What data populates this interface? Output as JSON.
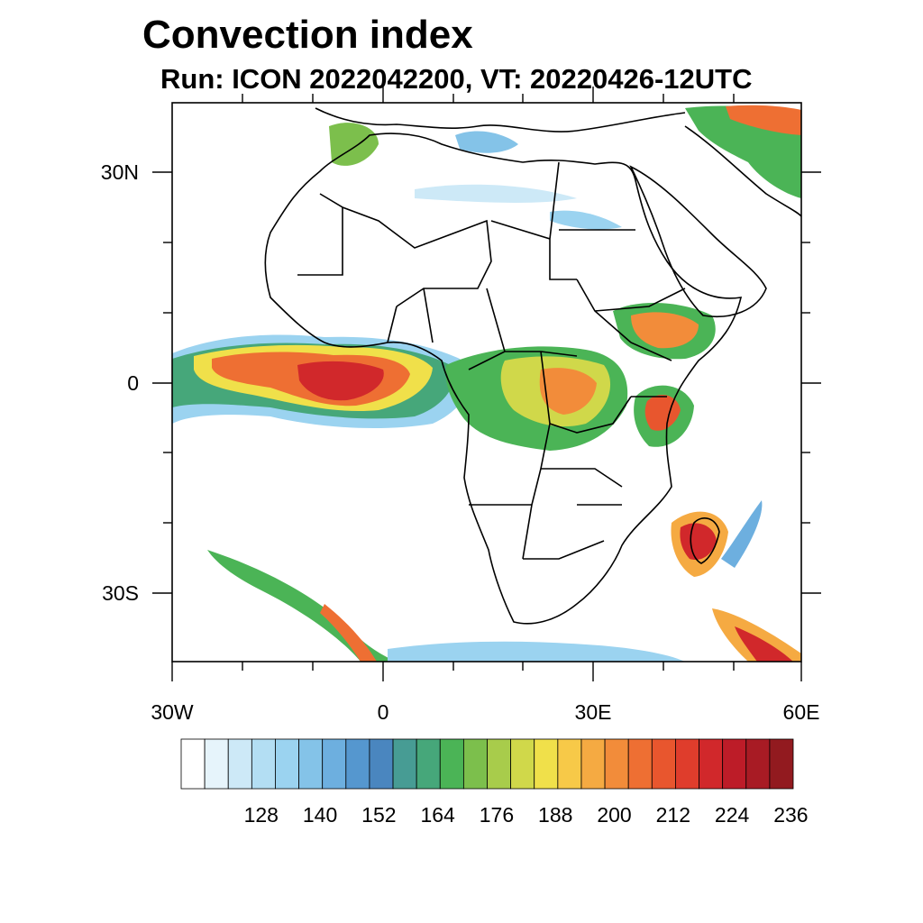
{
  "title": "Convection index",
  "subtitle": "Run: ICON 2022042200,  VT: 20220426-12UTC",
  "map": {
    "lon_range": [
      -30,
      60
    ],
    "lat_range": [
      -40,
      40
    ],
    "lon_ticks": [
      {
        "value": -30,
        "label": "30W"
      },
      {
        "value": 0,
        "label": "0"
      },
      {
        "value": 30,
        "label": "30E"
      },
      {
        "value": 60,
        "label": "60E"
      }
    ],
    "lat_ticks": [
      {
        "value": 30,
        "label": "30N"
      },
      {
        "value": 0,
        "label": "0"
      },
      {
        "value": -30,
        "label": "30S"
      }
    ]
  },
  "colorbar": {
    "colors": [
      "#ffffff",
      "#e6f4fb",
      "#cde9f7",
      "#b3def3",
      "#9bd3f0",
      "#84c3e8",
      "#6dafdf",
      "#5597cf",
      "#4a86bf",
      "#479c94",
      "#46a77a",
      "#4bb456",
      "#7cbf4c",
      "#a8cc4b",
      "#d0d84a",
      "#f0e04a",
      "#f7c948",
      "#f5aa42",
      "#f28c3a",
      "#ee6f33",
      "#e8562e",
      "#df3d2c",
      "#d1282b",
      "#bd1c28",
      "#a81b24",
      "#921a1f"
    ],
    "labels": [
      "128",
      "140",
      "152",
      "164",
      "176",
      "188",
      "200",
      "212",
      "224",
      "236"
    ]
  }
}
